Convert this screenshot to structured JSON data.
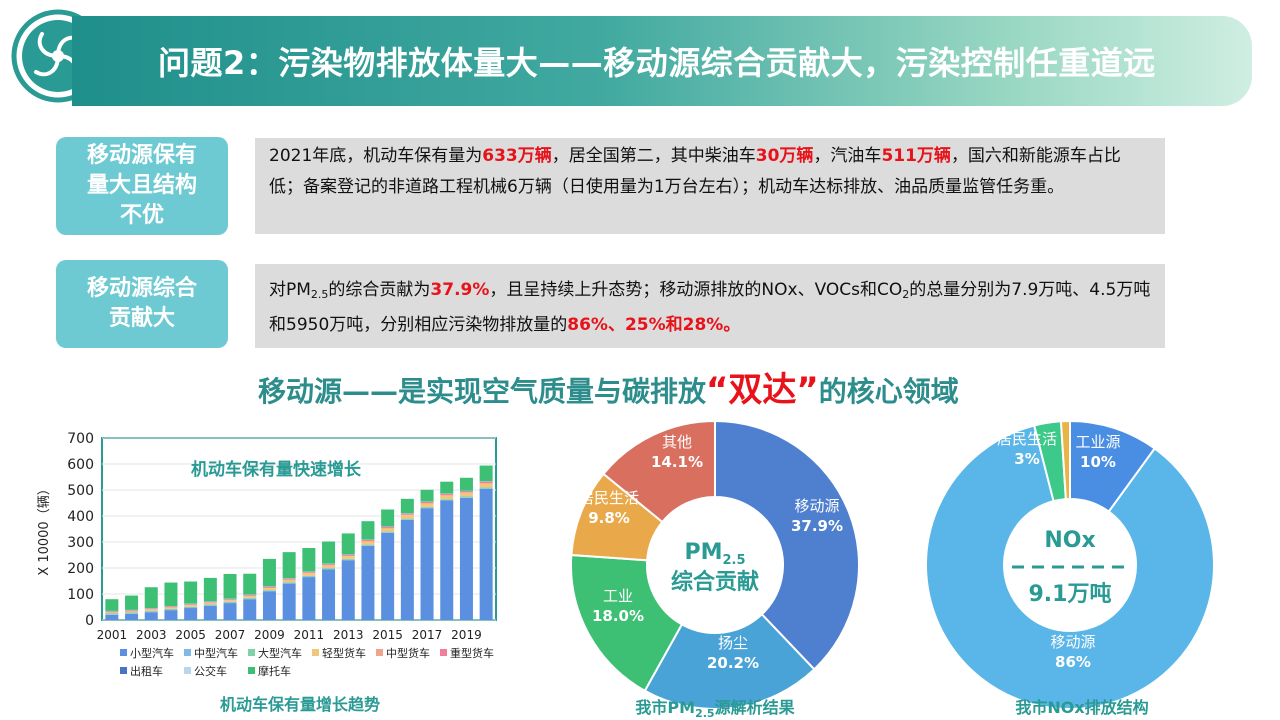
{
  "header": {
    "title": "问题2：污染物排放体量大——移动源综合贡献大，污染控制任重道远",
    "logo_icon": "swirl-logo-icon",
    "colors": {
      "banner_start": "#1f8f8b",
      "banner_end": "#cfeee2"
    }
  },
  "section1": {
    "label": "移动源保有量大且结构不优",
    "label_lines": [
      "移动源保有",
      "量大且结构",
      "不优"
    ],
    "text_parts": [
      {
        "t": "2021年底，机动车保有量为",
        "hl": false
      },
      {
        "t": "633万辆",
        "hl": true
      },
      {
        "t": "，居全国第二，其中柴油车",
        "hl": false
      },
      {
        "t": "30万辆",
        "hl": true
      },
      {
        "t": "，汽油车",
        "hl": false
      },
      {
        "t": "511万辆",
        "hl": true
      },
      {
        "t": "，国六和新能源车占比低；备案登记的非道路工程机械6万辆（日使用量为1万台左右）；机动车达标排放、油品质量监管任务重。",
        "hl": false
      }
    ]
  },
  "section2": {
    "label_lines": [
      "移动源综合",
      "贡献大"
    ],
    "t1": "对PM",
    "t1_sub": "2.5",
    "t2": "的综合贡献为",
    "t3": "37.9%",
    "t4": "，且呈持续上升态势；移动源排放的NOx、VOCs和CO",
    "t4_sub": "2",
    "t5": "的总量分别为7.9万吨、4.5万吨和5950万吨，分别相应污染物排放量的",
    "t6": "86%、25%和28%。"
  },
  "mid_title": {
    "pre": "移动源——是实现空气质量与碳排放",
    "quoted": "“双达”",
    "post": "的核心领域"
  },
  "chart_data": [
    {
      "type": "bar",
      "stacked": true,
      "title": "机动车保有量快速增长",
      "caption": "机动车保有量增长趋势",
      "ylabel": "X 10000（辆）",
      "ylim": [
        0,
        700
      ],
      "yticks": [
        0,
        100,
        200,
        300,
        400,
        500,
        600,
        700
      ],
      "categories": [
        "2001",
        "2002",
        "2003",
        "2004",
        "2005",
        "2006",
        "2007",
        "2008",
        "2009",
        "2010",
        "2011",
        "2012",
        "2013",
        "2014",
        "2015",
        "2016",
        "2017",
        "2018",
        "2019",
        "2020"
      ],
      "xtick_labels": [
        "2001",
        "2003",
        "2005",
        "2007",
        "2009",
        "2011",
        "2013",
        "2015",
        "2017",
        "2019"
      ],
      "series": [
        {
          "name": "小型汽车",
          "color": "#5b8fe0",
          "values": [
            20,
            24,
            30,
            38,
            46,
            55,
            65,
            80,
            110,
            140,
            165,
            195,
            230,
            285,
            335,
            385,
            430,
            460,
            470,
            505
          ]
        },
        {
          "name": "中型汽车",
          "color": "#7fb9e6",
          "values": [
            2,
            2,
            2,
            2,
            2,
            2,
            2,
            2,
            2,
            2,
            2,
            2,
            2,
            2,
            2,
            2,
            2,
            2,
            2,
            2
          ]
        },
        {
          "name": "大型汽车",
          "color": "#7fd2a6",
          "values": [
            3,
            3,
            3,
            3,
            3,
            3,
            3,
            3,
            3,
            3,
            3,
            3,
            3,
            3,
            3,
            3,
            3,
            3,
            3,
            3
          ]
        },
        {
          "name": "轻型货车",
          "color": "#f2c77a",
          "values": [
            4,
            4,
            5,
            5,
            6,
            6,
            6,
            7,
            8,
            9,
            10,
            10,
            11,
            12,
            12,
            13,
            13,
            14,
            14,
            15
          ]
        },
        {
          "name": "中型货车",
          "color": "#f0a48c",
          "values": [
            2,
            2,
            2,
            2,
            2,
            2,
            2,
            2,
            2,
            2,
            2,
            2,
            2,
            2,
            2,
            2,
            2,
            2,
            2,
            2
          ]
        },
        {
          "name": "重型货车",
          "color": "#f07f9a",
          "values": [
            2,
            2,
            2,
            2,
            2,
            2,
            2,
            2,
            3,
            3,
            3,
            3,
            3,
            4,
            4,
            4,
            4,
            4,
            4,
            5
          ]
        },
        {
          "name": "出租车",
          "color": "#4a73c5",
          "values": [
            1,
            1,
            1,
            1,
            1,
            1,
            1,
            1,
            1,
            1,
            1,
            1,
            1,
            1,
            1,
            1,
            1,
            1,
            1,
            1
          ]
        },
        {
          "name": "公交车",
          "color": "#b8d7ef",
          "values": [
            1,
            1,
            1,
            1,
            1,
            1,
            1,
            1,
            1,
            1,
            1,
            1,
            1,
            1,
            1,
            1,
            1,
            1,
            1,
            1
          ]
        },
        {
          "name": "摩托车",
          "color": "#3dbf74",
          "values": [
            45,
            55,
            80,
            90,
            85,
            90,
            95,
            80,
            105,
            100,
            90,
            85,
            80,
            70,
            65,
            55,
            45,
            45,
            50,
            60
          ]
        }
      ]
    },
    {
      "type": "pie",
      "donut": true,
      "center_label_main": "PM",
      "center_label_sub": "2.5",
      "center_label_line2": "综合贡献",
      "caption_main": "我市PM",
      "caption_sub": "2.5",
      "caption_end": "源解析结果",
      "slices": [
        {
          "name": "移动源",
          "value": 37.9,
          "label": "37.9%",
          "color": "#4f7fcf"
        },
        {
          "name": "扬尘",
          "value": 20.2,
          "label": "20.2%",
          "color": "#4aa3d6"
        },
        {
          "name": "工业",
          "value": 18.0,
          "label": "18.0%",
          "color": "#3dbf74"
        },
        {
          "name": "居民生活",
          "value": 9.8,
          "label": "9.8%",
          "color": "#e9a94a"
        },
        {
          "name": "其他",
          "value": 14.1,
          "label": "14.1%",
          "color": "#d96f5f"
        }
      ]
    },
    {
      "type": "pie",
      "donut": true,
      "center_label_top": "NOx",
      "center_label_bottom": "9.1万吨",
      "caption": "我市NOx排放结构",
      "slices": [
        {
          "name": "工业源",
          "value": 10,
          "label": "10%",
          "color": "#4a8ee3"
        },
        {
          "name": "移动源",
          "value": 86,
          "label": "86%",
          "color": "#5ab6e8"
        },
        {
          "name": "居民生活",
          "value": 3,
          "label": "3%",
          "color": "#3dc98a"
        },
        {
          "name": "",
          "value": 1,
          "label": "",
          "color": "#e8b446"
        }
      ]
    }
  ]
}
